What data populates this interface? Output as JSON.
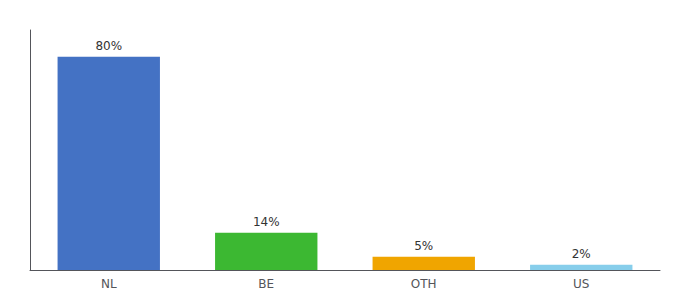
{
  "chart_data": {
    "type": "bar",
    "categories": [
      "NL",
      "BE",
      "OTH",
      "US"
    ],
    "values": [
      80,
      14,
      5,
      2
    ],
    "value_labels": [
      "80%",
      "14%",
      "5%",
      "2%"
    ],
    "data_labels": true,
    "colors": [
      "#4472c4",
      "#3cb832",
      "#f0a500",
      "#87ceeb"
    ],
    "ylim": [
      0,
      90
    ],
    "tick_labels": "x",
    "grid": false
  }
}
